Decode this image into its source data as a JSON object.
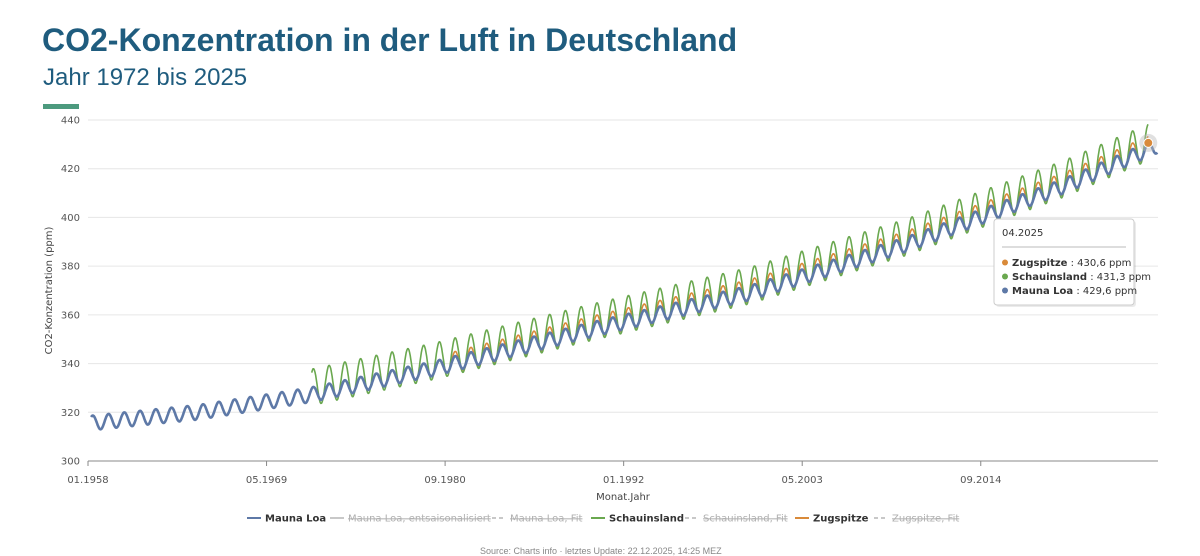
{
  "header": {
    "title": "CO2-Konzentration in der Luft in Deutschland",
    "subtitle": "Jahr 1972 bis 2025"
  },
  "source_text": "Source: Charts info · letztes Update: 22.12.2025, 14:25 MEZ",
  "colors": {
    "title": "#1f5c7e",
    "accent": "#4c9a7e",
    "mauna_loa": "#5e79a7",
    "schauinsland": "#6aa84f",
    "zugspitze": "#d98a3a",
    "inactive": "#c8c8c8",
    "grid": "#e6e6e6"
  },
  "chart_data": {
    "type": "line",
    "xlabel": "Monat.Jahr",
    "ylabel": "CO2-Konzentration (ppm)",
    "ylim": [
      300,
      440
    ],
    "yticks": [
      "300",
      "320",
      "340",
      "360",
      "380",
      "400",
      "420",
      "440"
    ],
    "xlim": [
      "01.1958",
      "12.2025"
    ],
    "xticks": [
      "01.1958",
      "05.1969",
      "09.1980",
      "01.1992",
      "05.2003",
      "09.2014"
    ],
    "grid": true,
    "legend_position": "bottom",
    "legend": [
      {
        "label": "Mauna Loa",
        "active": true,
        "style": "solid",
        "color": "#5e79a7"
      },
      {
        "label": "Mauna Loa, entsaisonalisiert",
        "active": false,
        "style": "solid"
      },
      {
        "label": "Mauna Loa, Fit",
        "active": false,
        "style": "dashed"
      },
      {
        "label": "Schauinsland",
        "active": true,
        "style": "solid",
        "color": "#6aa84f"
      },
      {
        "label": "Schauinsland, Fit",
        "active": false,
        "style": "dashed"
      },
      {
        "label": "Zugspitze",
        "active": true,
        "style": "solid",
        "color": "#d98a3a"
      },
      {
        "label": "Zugspitze, Fit",
        "active": false,
        "style": "dashed"
      }
    ],
    "series": [
      {
        "name": "Mauna Loa",
        "color": "#5e79a7",
        "start": "1958.2",
        "end": "2025.9",
        "baseline": [
          [
            1958,
            315.5
          ],
          [
            1965,
            320
          ],
          [
            1972,
            327
          ],
          [
            1980,
            338
          ],
          [
            1990,
            354
          ],
          [
            2000,
            369
          ],
          [
            2010,
            389
          ],
          [
            2020,
            413
          ],
          [
            2025,
            427
          ]
        ],
        "amplitude": 3.0
      },
      {
        "name": "Schauinsland",
        "color": "#6aa84f",
        "start": "1972.2",
        "end": "2025.3",
        "baseline": [
          [
            1972,
            330
          ],
          [
            1980,
            341
          ],
          [
            1990,
            357
          ],
          [
            2000,
            372
          ],
          [
            2010,
            392
          ],
          [
            2020,
            416
          ],
          [
            2025,
            430
          ]
        ],
        "amplitude": 7.5
      },
      {
        "name": "Zugspitze",
        "color": "#d98a3a",
        "start": "1981.0",
        "end": "2025.3",
        "baseline": [
          [
            1981,
            340
          ],
          [
            1990,
            355
          ],
          [
            2000,
            370
          ],
          [
            2010,
            390
          ],
          [
            2020,
            414
          ],
          [
            2025,
            428
          ]
        ],
        "amplitude": 4.5
      }
    ],
    "tooltip": {
      "date": "04.2025",
      "items": [
        {
          "name": "Zugspitze",
          "value": ": 430,6 ppm",
          "color": "#d98a3a"
        },
        {
          "name": "Schauinsland",
          "value": ": 431,3 ppm",
          "color": "#6aa84f"
        },
        {
          "name": "Mauna Loa",
          "value": ": 429,6 ppm",
          "color": "#5e79a7"
        }
      ],
      "highlight_value": 430.6,
      "highlight_date": "2025.3"
    }
  }
}
